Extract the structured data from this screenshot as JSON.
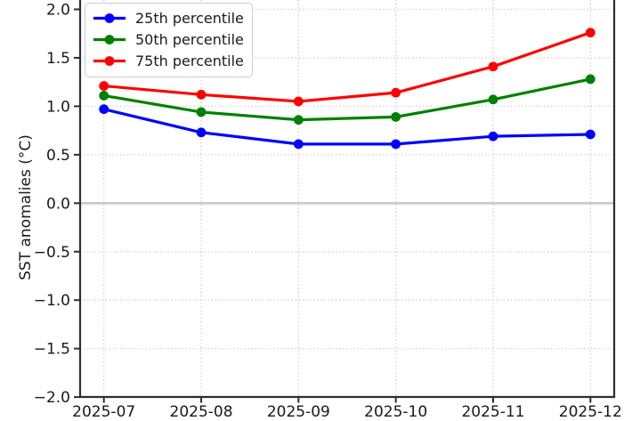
{
  "chart_data": {
    "type": "line",
    "title": "",
    "xlabel": "",
    "ylabel": "SST anomalies (°C)",
    "x": [
      "2025-07",
      "2025-08",
      "2025-09",
      "2025-10",
      "2025-11",
      "2025-12"
    ],
    "series": [
      {
        "name": "25th percentile",
        "color": "#0000ff",
        "values": [
          0.97,
          0.73,
          0.61,
          0.61,
          0.69,
          0.71
        ]
      },
      {
        "name": "50th percentile",
        "color": "#008000",
        "values": [
          1.11,
          0.94,
          0.86,
          0.89,
          1.07,
          1.28
        ]
      },
      {
        "name": "75th percentile",
        "color": "#ff0000",
        "values": [
          1.21,
          1.12,
          1.05,
          1.14,
          1.41,
          1.76
        ]
      }
    ],
    "ylim": [
      -2.0,
      2.1
    ],
    "yticks": [
      2.0,
      1.5,
      1.0,
      0.5,
      0.0,
      -0.5,
      -1.0,
      -1.5,
      -2.0
    ],
    "ytick_labels": [
      "2.0",
      "1.5",
      "1.0",
      "0.5",
      "0.0",
      "−0.5",
      "−1.0",
      "−1.5",
      "−2.0"
    ],
    "grid": true,
    "grid_style": "dotted",
    "legend_position": "upper left",
    "zero_line": true,
    "colors": {
      "grid": "#c8c8c8",
      "zero_line": "#c9c9c9",
      "spine": "#2e2e2e",
      "tick_label": "#191919",
      "legend_border": "#cccccc"
    }
  }
}
